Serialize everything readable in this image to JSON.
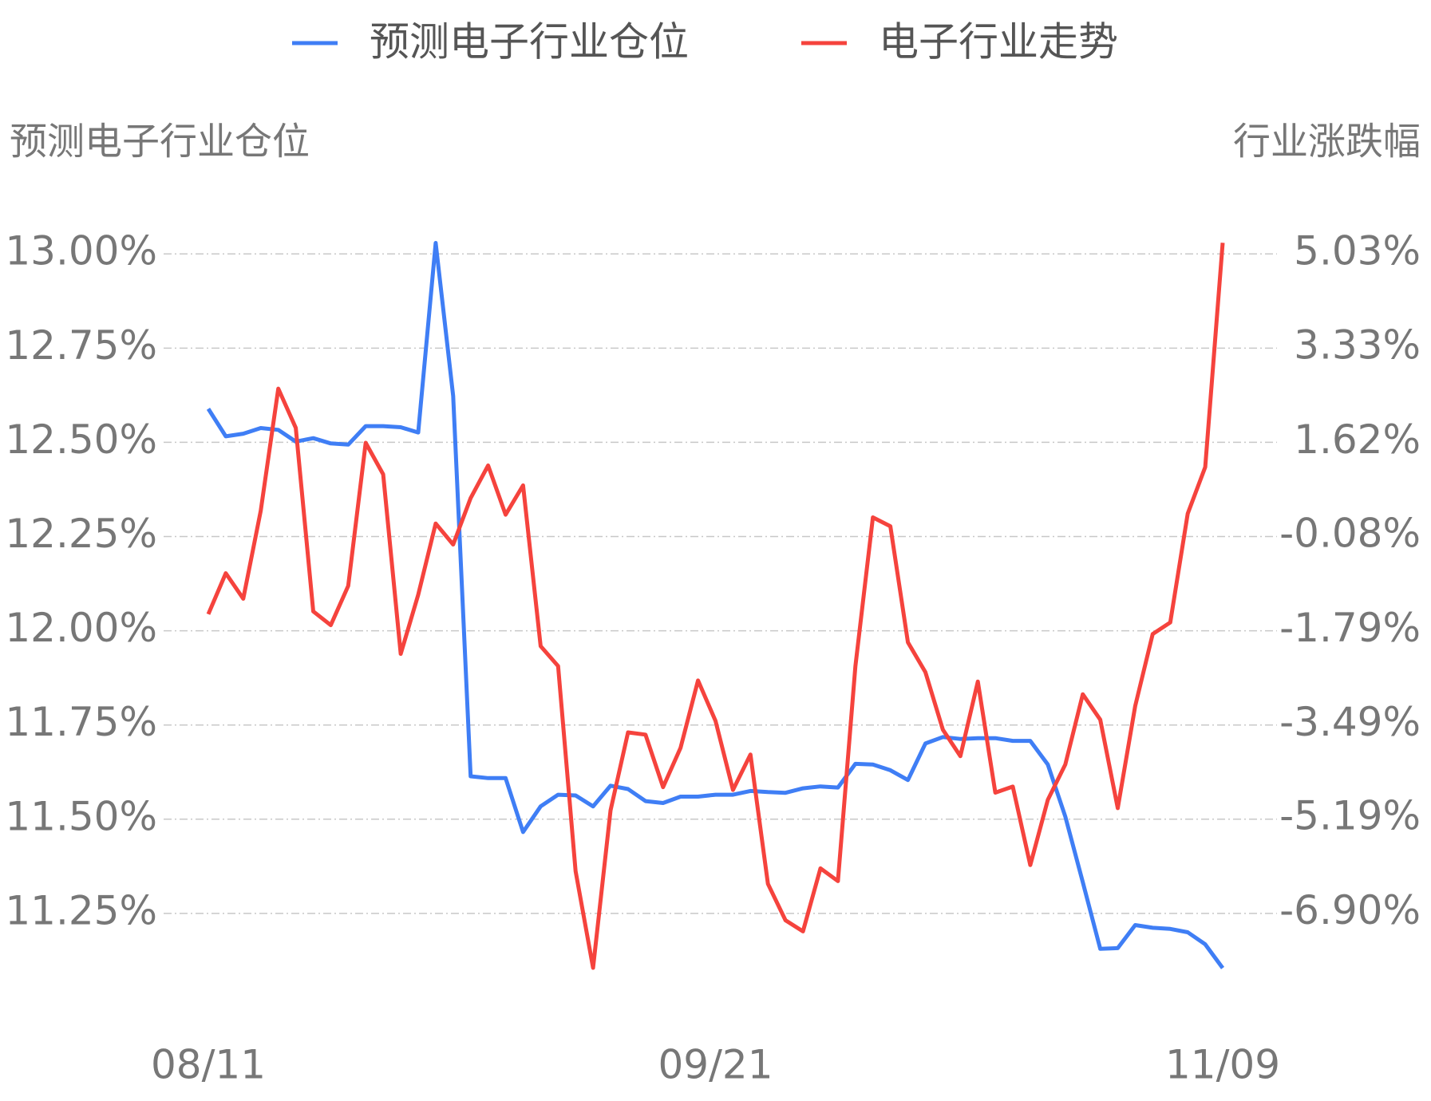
{
  "chart_data": {
    "type": "line",
    "legend": "top",
    "ylabel": "预测电子行业仓位",
    "y2label": "行业涨跌幅",
    "categories": [
      "08/11",
      null,
      null,
      null,
      null,
      null,
      null,
      null,
      null,
      null,
      null,
      null,
      null,
      null,
      null,
      null,
      null,
      null,
      null,
      null,
      null,
      null,
      null,
      null,
      null,
      null,
      null,
      null,
      null,
      "09/21",
      null,
      null,
      null,
      null,
      null,
      null,
      null,
      null,
      null,
      null,
      null,
      null,
      null,
      null,
      null,
      null,
      null,
      null,
      null,
      null,
      null,
      null,
      null,
      null,
      null,
      null,
      null,
      null,
      "11/09"
    ],
    "ylim": [
      11.0,
      13.1
    ],
    "yticks": [
      {
        "value": 13.0,
        "label": "13.00%"
      },
      {
        "value": 12.75,
        "label": "12.75%"
      },
      {
        "value": 12.5,
        "label": "12.50%"
      },
      {
        "value": 12.25,
        "label": "12.25%"
      },
      {
        "value": 12.0,
        "label": "12.00%"
      },
      {
        "value": 11.75,
        "label": "11.75%"
      },
      {
        "value": 11.5,
        "label": "11.50%"
      },
      {
        "value": 11.25,
        "label": "11.25%"
      }
    ],
    "y2lim": [
      -8.61,
      5.71
    ],
    "y2ticks": [
      {
        "value": 5.03,
        "label": "5.03%"
      },
      {
        "value": 3.33,
        "label": "3.33%"
      },
      {
        "value": 1.62,
        "label": "1.62%"
      },
      {
        "value": -0.08,
        "label": "-0.08%"
      },
      {
        "value": -1.79,
        "label": "-1.79%"
      },
      {
        "value": -3.49,
        "label": "-3.49%"
      },
      {
        "value": -5.19,
        "label": "-5.19%"
      },
      {
        "value": -6.9,
        "label": "-6.90%"
      }
    ],
    "grid": true,
    "series": [
      {
        "name": "预测电子行业仓位",
        "color": "#3f7ef5",
        "axis": "y",
        "values": [
          12.589,
          12.516,
          12.523,
          12.538,
          12.533,
          12.502,
          12.511,
          12.497,
          12.494,
          12.543,
          12.543,
          12.54,
          12.526,
          13.029,
          12.623,
          11.614,
          11.609,
          11.609,
          11.466,
          11.534,
          11.565,
          11.563,
          11.534,
          11.589,
          11.58,
          11.548,
          11.543,
          11.56,
          11.56,
          11.565,
          11.565,
          11.575,
          11.572,
          11.57,
          11.582,
          11.587,
          11.584,
          11.647,
          11.645,
          11.63,
          11.604,
          11.701,
          11.718,
          11.713,
          11.715,
          11.715,
          11.708,
          11.708,
          11.645,
          11.507,
          11.333,
          11.156,
          11.158,
          11.219,
          11.212,
          11.209,
          11.2,
          11.168,
          11.105
        ]
      },
      {
        "name": "电子行业走势",
        "color": "#f5433d",
        "axis": "y2",
        "values": [
          -1.49,
          -0.75,
          -1.21,
          0.38,
          2.59,
          1.88,
          -1.44,
          -1.69,
          -0.98,
          1.61,
          1.04,
          -2.21,
          -1.14,
          0.15,
          -0.23,
          0.61,
          1.2,
          0.31,
          0.84,
          -2.07,
          -2.43,
          -6.14,
          -7.89,
          -5.04,
          -3.63,
          -3.67,
          -4.62,
          -3.91,
          -2.69,
          -3.42,
          -4.67,
          -4.03,
          -6.37,
          -7.03,
          -7.23,
          -6.09,
          -6.32,
          -2.43,
          0.26,
          0.1,
          -2.0,
          -2.54,
          -3.58,
          -4.06,
          -2.71,
          -4.72,
          -4.61,
          -6.03,
          -4.85,
          -4.21,
          -2.94,
          -3.4,
          -5.0,
          -3.15,
          -1.85,
          -1.64,
          0.33,
          1.17,
          5.23
        ]
      }
    ]
  }
}
